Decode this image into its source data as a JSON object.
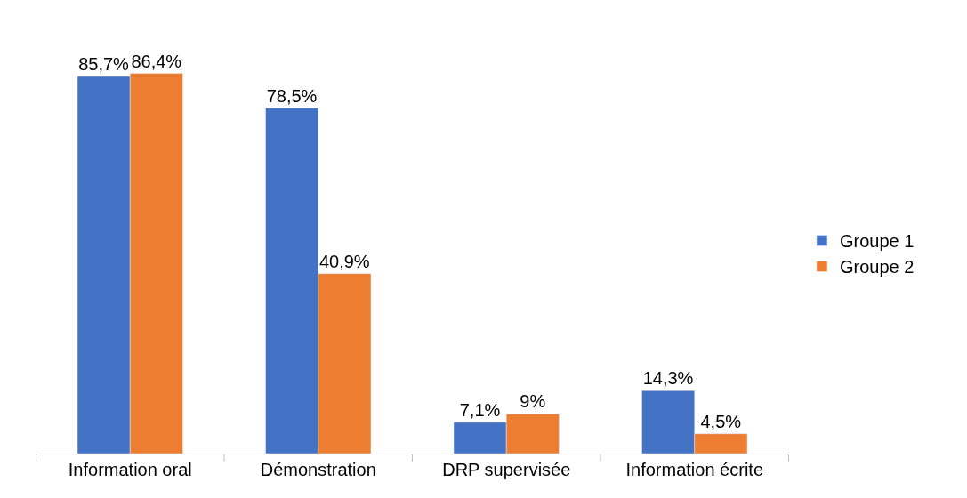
{
  "chart_data": {
    "type": "bar",
    "categories": [
      "Information oral",
      "Démonstration",
      "DRP supervisée",
      "Information écrite"
    ],
    "series": [
      {
        "name": "Groupe 1",
        "color": "#4472c4",
        "values": [
          85.7,
          78.5,
          7.1,
          14.3
        ],
        "value_labels": [
          "85,7%",
          "78,5%",
          "7,1%",
          "14,3%"
        ]
      },
      {
        "name": "Groupe 2",
        "color": "#ed7d31",
        "values": [
          86.4,
          40.9,
          9,
          4.5
        ],
        "value_labels": [
          "86,4%",
          "40,9%",
          "9%",
          "4,5%"
        ]
      }
    ],
    "legend": "right"
  }
}
